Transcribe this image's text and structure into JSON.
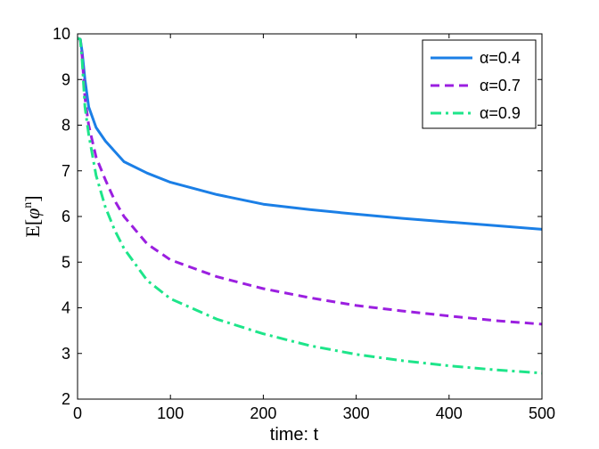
{
  "chart_data": {
    "type": "line",
    "xlabel": "time: t",
    "ylabel_main": "E[",
    "ylabel_symbol": "φ",
    "ylabel_sup": "n",
    "ylabel_end": "]",
    "xlim": [
      0,
      500
    ],
    "ylim": [
      2,
      10
    ],
    "x_ticks": [
      "0",
      "100",
      "200",
      "300",
      "400",
      "500"
    ],
    "y_ticks": [
      "2",
      "3",
      "4",
      "5",
      "6",
      "7",
      "8",
      "9",
      "10"
    ],
    "grid": false,
    "legend_position": "top-right",
    "series": [
      {
        "name": "α=0.4",
        "color": "#1b7fe6",
        "dash": "solid",
        "points": [
          [
            0,
            9.9
          ],
          [
            3,
            9.88
          ],
          [
            5,
            9.6
          ],
          [
            8,
            9.0
          ],
          [
            12,
            8.4
          ],
          [
            20,
            7.95
          ],
          [
            30,
            7.65
          ],
          [
            50,
            7.2
          ],
          [
            75,
            6.95
          ],
          [
            100,
            6.75
          ],
          [
            150,
            6.48
          ],
          [
            200,
            6.27
          ],
          [
            250,
            6.15
          ],
          [
            300,
            6.05
          ],
          [
            350,
            5.96
          ],
          [
            400,
            5.88
          ],
          [
            450,
            5.8
          ],
          [
            500,
            5.72
          ]
        ]
      },
      {
        "name": "α=0.7",
        "color": "#9b1fe0",
        "dash": "dash",
        "points": [
          [
            0,
            9.9
          ],
          [
            3,
            9.88
          ],
          [
            5,
            9.5
          ],
          [
            8,
            8.6
          ],
          [
            12,
            8.0
          ],
          [
            20,
            7.3
          ],
          [
            30,
            6.8
          ],
          [
            40,
            6.35
          ],
          [
            50,
            6.0
          ],
          [
            75,
            5.4
          ],
          [
            100,
            5.05
          ],
          [
            150,
            4.68
          ],
          [
            200,
            4.42
          ],
          [
            250,
            4.22
          ],
          [
            300,
            4.05
          ],
          [
            350,
            3.93
          ],
          [
            400,
            3.82
          ],
          [
            450,
            3.72
          ],
          [
            500,
            3.64
          ]
        ]
      },
      {
        "name": "α=0.9",
        "color": "#1ee58a",
        "dash": "dashdot",
        "points": [
          [
            0,
            9.9
          ],
          [
            3,
            9.88
          ],
          [
            5,
            9.4
          ],
          [
            8,
            8.4
          ],
          [
            12,
            7.8
          ],
          [
            20,
            6.9
          ],
          [
            30,
            6.2
          ],
          [
            40,
            5.7
          ],
          [
            50,
            5.3
          ],
          [
            75,
            4.6
          ],
          [
            100,
            4.2
          ],
          [
            150,
            3.75
          ],
          [
            200,
            3.43
          ],
          [
            250,
            3.17
          ],
          [
            300,
            2.98
          ],
          [
            350,
            2.84
          ],
          [
            400,
            2.73
          ],
          [
            450,
            2.64
          ],
          [
            500,
            2.57
          ]
        ]
      }
    ]
  }
}
